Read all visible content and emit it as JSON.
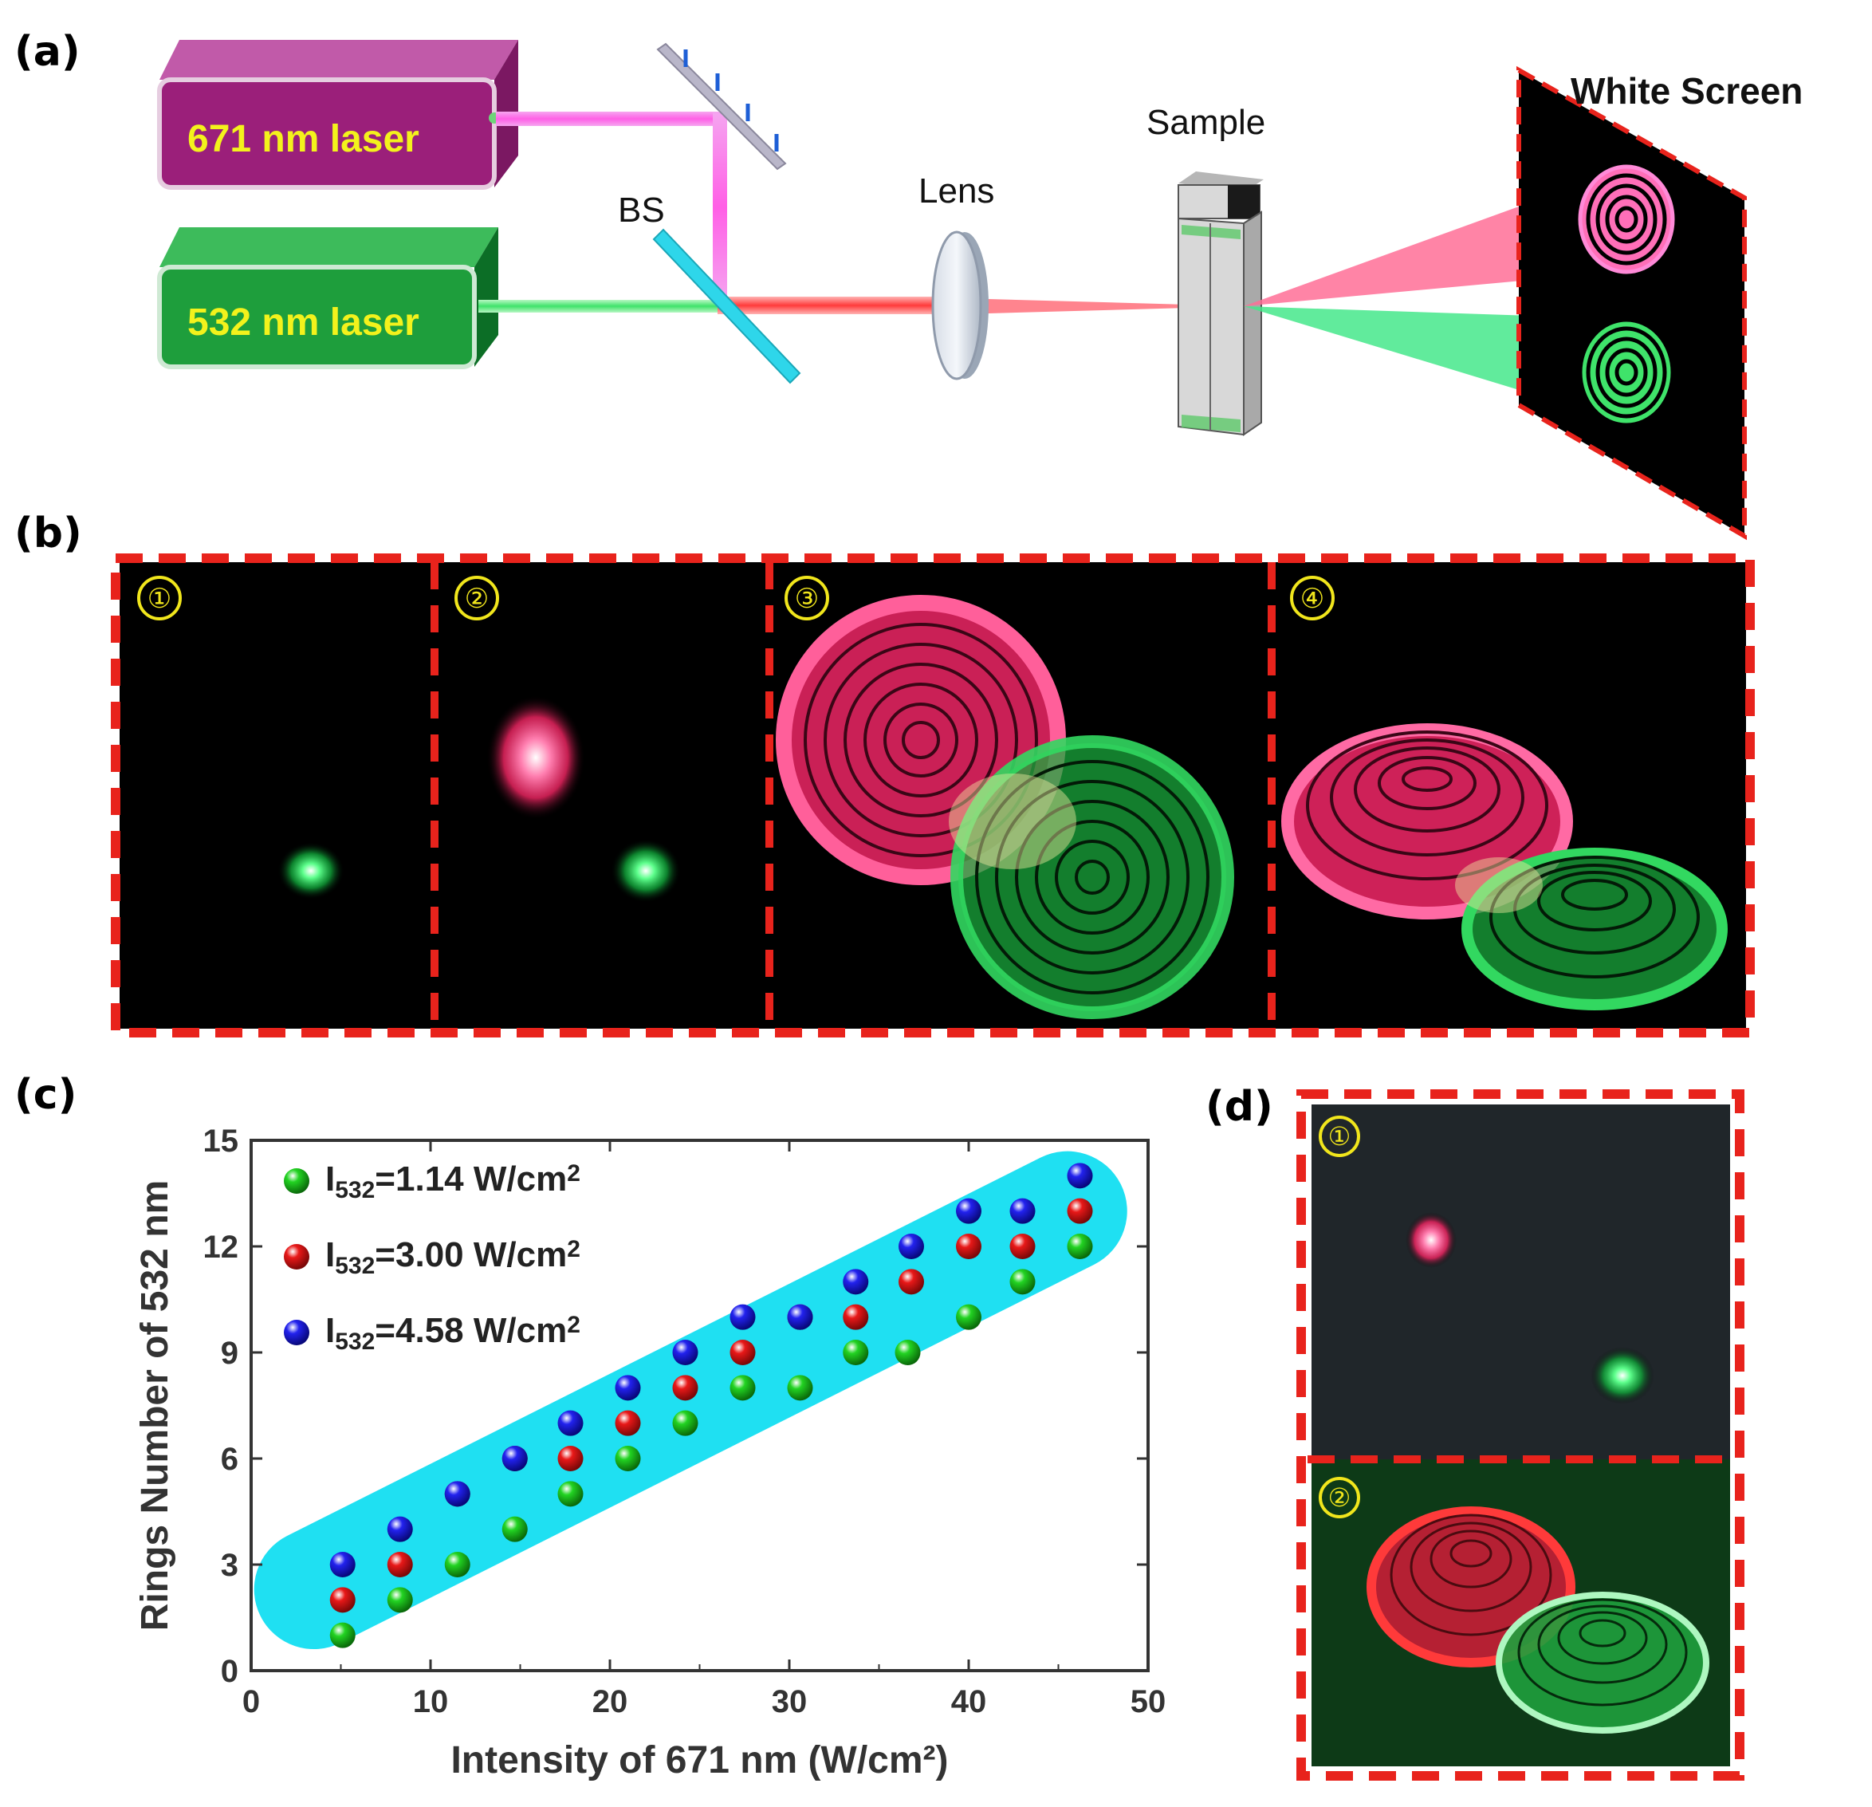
{
  "panels": {
    "a": {
      "label": "(a)",
      "laser_red": "671 nm laser",
      "laser_green": "532 nm laser",
      "bs": "BS",
      "lens": "Lens",
      "sample": "Sample",
      "screen": "White Screen"
    },
    "b": {
      "label": "(b)",
      "markers": [
        "①",
        "②",
        "③",
        "④"
      ]
    },
    "c": {
      "label": "(c)"
    },
    "d": {
      "label": "(d)",
      "markers": [
        "①",
        "②"
      ]
    }
  },
  "colors": {
    "frame_red": "#e8231c",
    "laser_red": "#ff5b8c",
    "laser_green": "#27e06a",
    "magenta_box": "#9b1f7a",
    "green_box": "#1e9e3c",
    "band": "#1fe0f2",
    "series_green": "#22d322",
    "series_red": "#e81818",
    "series_blue": "#1a1ae0"
  },
  "chart_data": {
    "type": "scatter",
    "xlabel": "Intensity of 671 nm (W/cm²)",
    "ylabel": "Rings Number of 532 nm",
    "xlim": [
      0,
      50
    ],
    "ylim": [
      0,
      15
    ],
    "xticks": [
      0,
      10,
      20,
      30,
      40,
      50
    ],
    "yticks": [
      0,
      3,
      6,
      9,
      12,
      15
    ],
    "legend_position": "top-left",
    "series": [
      {
        "name": "I532=1.14 W/cm2",
        "name_main": "I",
        "name_sub": "532",
        "name_rest": "=1.14 W/cm",
        "name_sup": "2",
        "color": "#22d322",
        "x": [
          5.1,
          8.3,
          11.5,
          14.7,
          17.8,
          21.0,
          24.2,
          27.4,
          30.6,
          33.7,
          36.6,
          40.0,
          43.0,
          46.2
        ],
        "y": [
          1,
          2,
          3,
          4,
          5,
          6,
          7,
          8,
          8,
          9,
          9,
          10,
          11,
          12
        ]
      },
      {
        "name": "I532=3.00 W/cm2",
        "name_main": "I",
        "name_sub": "532",
        "name_rest": "=3.00 W/cm",
        "name_sup": "2",
        "color": "#e81818",
        "x": [
          5.1,
          8.3,
          11.5,
          14.7,
          17.8,
          21.0,
          24.2,
          27.4,
          30.6,
          33.7,
          36.8,
          40.0,
          43.0,
          46.2
        ],
        "y": [
          2,
          3,
          5,
          6,
          6,
          7,
          8,
          9,
          10,
          10,
          11,
          12,
          12,
          13
        ]
      },
      {
        "name": "I532=4.58 W/cm2",
        "name_main": "I",
        "name_sub": "532",
        "name_rest": "=4.58 W/cm",
        "name_sup": "2",
        "color": "#1a1ae0",
        "x": [
          5.1,
          8.3,
          11.5,
          14.7,
          17.8,
          21.0,
          24.2,
          27.4,
          30.6,
          33.7,
          36.8,
          40.0,
          43.0,
          46.2
        ],
        "y": [
          3,
          4,
          5,
          6,
          7,
          8,
          9,
          10,
          10,
          11,
          12,
          13,
          13,
          14
        ]
      }
    ]
  }
}
